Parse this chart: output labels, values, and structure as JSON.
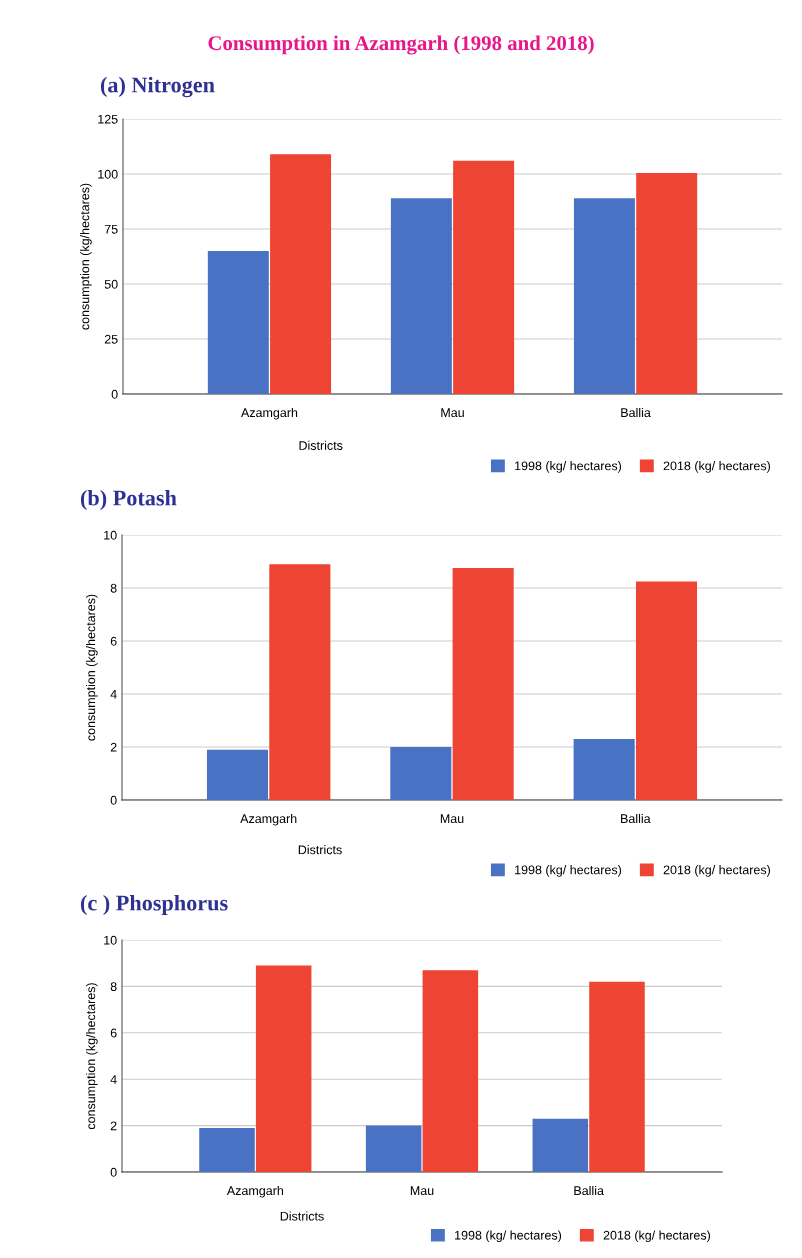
{
  "chart_data": [
    {
      "type": "bar",
      "title": "Consumption in Azamgarh (1998 and 2018)",
      "subtitle": "(a) Nitrogen",
      "xlabel": "Districts",
      "ylabel": "consumption (kg/hectares)",
      "categories": [
        "Azamgarh",
        "Mau",
        "Ballia"
      ],
      "series": [
        {
          "name": "1998 (kg/ hectares)",
          "color": "#4a72c4",
          "values": [
            65,
            89,
            89
          ]
        },
        {
          "name": "2018 (kg/ hectares)",
          "color": "#ee4433",
          "values": [
            109,
            106,
            100.5
          ]
        }
      ],
      "ylim": [
        0,
        125
      ],
      "yticks": [
        0,
        25,
        50,
        75,
        100,
        125
      ],
      "grid": "y",
      "legend": "bottom right"
    },
    {
      "type": "bar",
      "title": "(b) Potash",
      "xlabel": "Districts",
      "ylabel": "consumption (kg/hectares)",
      "categories": [
        "Azamgarh",
        "Mau",
        "Ballia"
      ],
      "series": [
        {
          "name": "1998 (kg/ hectares)",
          "color": "#4a72c4",
          "values": [
            1.9,
            2.0,
            2.3
          ]
        },
        {
          "name": "2018 (kg/ hectares)",
          "color": "#ee4433",
          "values": [
            8.9,
            8.75,
            8.25
          ]
        }
      ],
      "ylim": [
        0,
        10
      ],
      "yticks": [
        0,
        2,
        4,
        6,
        8,
        10
      ],
      "grid": "y",
      "legend": "bottom right"
    },
    {
      "type": "bar",
      "title": "(c ) Phosphorus",
      "xlabel": "Districts",
      "ylabel": "consumption (kg/hectares)",
      "categories": [
        "Azamgarh",
        "Mau",
        "Ballia"
      ],
      "series": [
        {
          "name": "1998 (kg/ hectares)",
          "color": "#4a72c4",
          "values": [
            1.9,
            2.0,
            2.3
          ]
        },
        {
          "name": "2018 (kg/ hectares)",
          "color": "#ee4433",
          "values": [
            8.9,
            8.7,
            8.2
          ]
        }
      ],
      "ylim": [
        0,
        10
      ],
      "yticks": [
        0,
        2,
        4,
        6,
        8,
        10
      ],
      "grid": "y",
      "legend": "bottom right"
    }
  ]
}
